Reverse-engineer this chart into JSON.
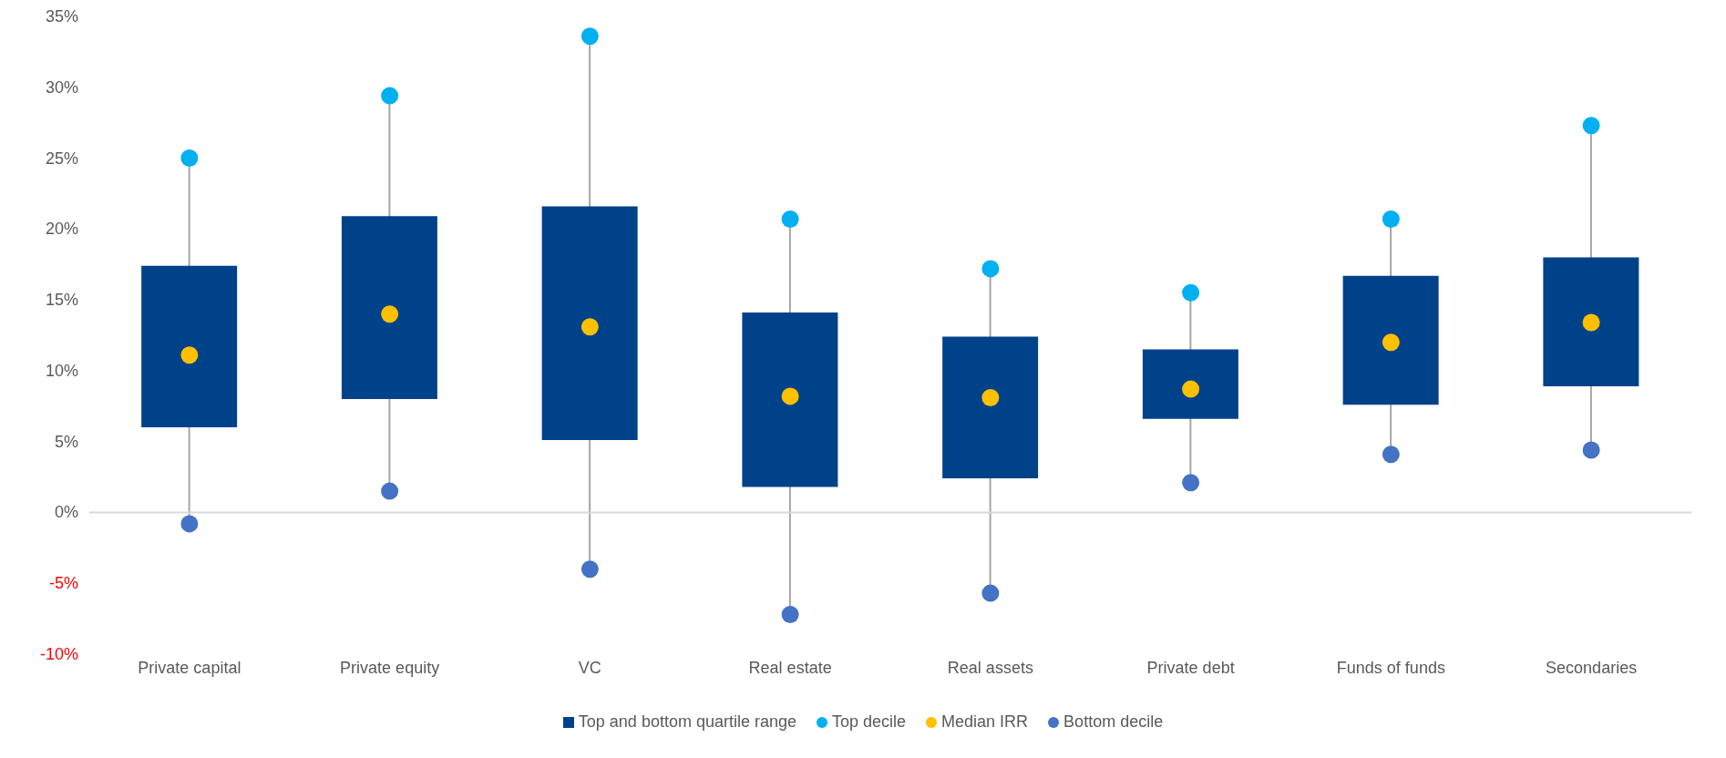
{
  "chart_data": {
    "type": "bar",
    "categories": [
      "Private capital",
      "Private equity",
      "VC",
      "Real estate",
      "Real assets",
      "Private debt",
      "Funds of funds",
      "Secondaries"
    ],
    "series": [
      {
        "name": "Top and bottom quartile range",
        "color": "#00428a",
        "base": [
          6.0,
          8.0,
          5.1,
          1.8,
          2.4,
          6.6,
          7.6,
          8.9
        ],
        "values": [
          11.4,
          12.9,
          16.5,
          12.3,
          10.0,
          4.9,
          9.1,
          9.1
        ]
      },
      {
        "name": "Top decile",
        "type": "scatter",
        "color": "#00b0f0",
        "values": [
          25.0,
          29.4,
          33.6,
          20.7,
          17.2,
          15.5,
          20.7,
          27.3
        ]
      },
      {
        "name": "Median IRR",
        "type": "scatter",
        "color": "#ffc000",
        "values": [
          11.1,
          14.0,
          13.1,
          8.2,
          8.1,
          8.7,
          12.0,
          13.4
        ]
      },
      {
        "name": "Bottom decile",
        "type": "scatter",
        "color": "#4472c4",
        "values": [
          -0.8,
          1.5,
          -4.0,
          -7.2,
          -5.7,
          2.1,
          4.1,
          4.4
        ]
      }
    ],
    "ylim": [
      -10,
      35
    ],
    "yticks": [
      {
        "value": -10,
        "label": "-10%"
      },
      {
        "value": -5,
        "label": "-5%"
      },
      {
        "value": 0,
        "label": "0%"
      },
      {
        "value": 5,
        "label": "5%"
      },
      {
        "value": 10,
        "label": "10%"
      },
      {
        "value": 15,
        "label": "15%"
      },
      {
        "value": 20,
        "label": "20%"
      },
      {
        "value": 25,
        "label": "25%"
      },
      {
        "value": 30,
        "label": "30%"
      },
      {
        "value": 35,
        "label": "35%"
      }
    ],
    "ref_lines": [
      {
        "axis": "y",
        "value": 0,
        "color": "#d9d9d9"
      }
    ],
    "grid": false,
    "legend": "bottom",
    "marker": "circle"
  }
}
